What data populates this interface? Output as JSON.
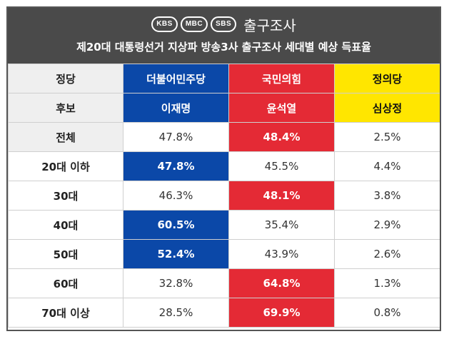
{
  "brand": {
    "logos": [
      "KBS",
      "MBC",
      "SBS"
    ],
    "title": "출구조사"
  },
  "subtitle": "제20대 대통령선거 지상파 방송3사 출구조사 세대별 예상 득표율",
  "colors": {
    "header_bg": "#4a4a4a",
    "democratic_blue": "#0b48a8",
    "ppp_red": "#e42a35",
    "justice_yellow": "#ffe600"
  },
  "table": {
    "party_label": "정당",
    "candidate_label": "후보",
    "parties": [
      "더불어민주당",
      "국민의힘",
      "정의당"
    ],
    "candidates": [
      "이재명",
      "윤석열",
      "심상정"
    ],
    "rows": [
      {
        "group": "전체",
        "values": [
          "47.8%",
          "48.4%",
          "2.5%"
        ],
        "leader": 1
      },
      {
        "group": "20대 이하",
        "values": [
          "47.8%",
          "45.5%",
          "4.4%"
        ],
        "leader": 0
      },
      {
        "group": "30대",
        "values": [
          "46.3%",
          "48.1%",
          "3.8%"
        ],
        "leader": 1
      },
      {
        "group": "40대",
        "values": [
          "60.5%",
          "35.4%",
          "2.9%"
        ],
        "leader": 0
      },
      {
        "group": "50대",
        "values": [
          "52.4%",
          "43.9%",
          "2.6%"
        ],
        "leader": 0
      },
      {
        "group": "60대",
        "values": [
          "32.8%",
          "64.8%",
          "1.3%"
        ],
        "leader": 1
      },
      {
        "group": "70대 이상",
        "values": [
          "28.5%",
          "69.9%",
          "0.8%"
        ],
        "leader": 1
      }
    ]
  },
  "chart_data": {
    "type": "table",
    "title": "제20대 대통령선거 지상파 방송3사 출구조사 세대별 예상 득표율",
    "categories": [
      "전체",
      "20대 이하",
      "30대",
      "40대",
      "50대",
      "60대",
      "70대 이상"
    ],
    "series": [
      {
        "name": "이재명",
        "values": [
          47.8,
          47.8,
          46.3,
          60.5,
          52.4,
          32.8,
          28.5
        ]
      },
      {
        "name": "윤석열",
        "values": [
          48.4,
          45.5,
          48.1,
          35.4,
          43.9,
          64.8,
          69.9
        ]
      },
      {
        "name": "심상정",
        "values": [
          2.5,
          4.4,
          3.8,
          2.9,
          2.6,
          1.3,
          0.8
        ]
      }
    ]
  }
}
